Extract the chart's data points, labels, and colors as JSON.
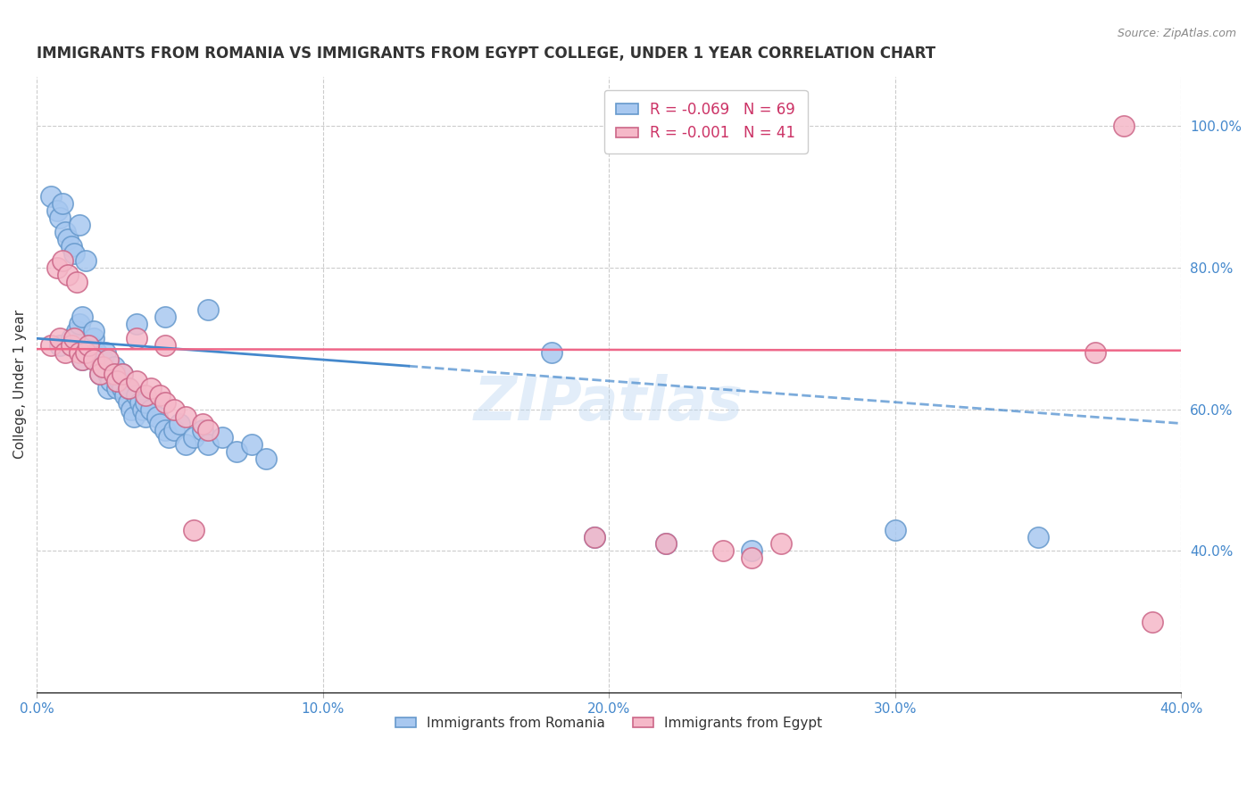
{
  "title": "IMMIGRANTS FROM ROMANIA VS IMMIGRANTS FROM EGYPT COLLEGE, UNDER 1 YEAR CORRELATION CHART",
  "source": "Source: ZipAtlas.com",
  "ylabel": "College, Under 1 year",
  "x_min": 0.0,
  "x_max": 0.4,
  "y_min": 0.2,
  "y_max": 1.07,
  "romania_R": -0.069,
  "romania_N": 69,
  "egypt_R": -0.001,
  "egypt_N": 41,
  "legend_label_romania": "R = -0.069   N = 69",
  "legend_label_egypt": "R = -0.001   N = 41",
  "bottom_legend_romania": "Immigrants from Romania",
  "bottom_legend_egypt": "Immigrants from Egypt",
  "romania_color": "#a8c8f0",
  "romania_edge": "#6699cc",
  "egypt_color": "#f5b8c8",
  "egypt_edge": "#cc6688",
  "trendline_romania_color": "#4488cc",
  "trendline_egypt_color": "#ee6688",
  "grid_color": "#cccccc",
  "title_color": "#333333",
  "axis_label_color": "#4488cc",
  "watermark": "ZIPatlas",
  "romania_x": [
    0.008,
    0.012,
    0.014,
    0.015,
    0.016,
    0.016,
    0.018,
    0.019,
    0.02,
    0.02,
    0.021,
    0.021,
    0.022,
    0.023,
    0.023,
    0.024,
    0.025,
    0.025,
    0.026,
    0.027,
    0.027,
    0.028,
    0.029,
    0.03,
    0.03,
    0.031,
    0.032,
    0.032,
    0.033,
    0.034,
    0.035,
    0.036,
    0.037,
    0.038,
    0.038,
    0.04,
    0.042,
    0.043,
    0.045,
    0.046,
    0.048,
    0.05,
    0.052,
    0.055,
    0.058,
    0.06,
    0.065,
    0.07,
    0.075,
    0.08,
    0.005,
    0.007,
    0.008,
    0.009,
    0.01,
    0.011,
    0.012,
    0.013,
    0.015,
    0.017,
    0.18,
    0.195,
    0.22,
    0.25,
    0.3,
    0.35,
    0.035,
    0.045,
    0.06
  ],
  "romania_y": [
    0.69,
    0.7,
    0.71,
    0.72,
    0.73,
    0.67,
    0.68,
    0.69,
    0.7,
    0.71,
    0.67,
    0.68,
    0.65,
    0.66,
    0.67,
    0.68,
    0.65,
    0.63,
    0.64,
    0.65,
    0.66,
    0.63,
    0.64,
    0.65,
    0.63,
    0.62,
    0.61,
    0.63,
    0.6,
    0.59,
    0.62,
    0.61,
    0.6,
    0.59,
    0.61,
    0.6,
    0.59,
    0.58,
    0.57,
    0.56,
    0.57,
    0.58,
    0.55,
    0.56,
    0.57,
    0.55,
    0.56,
    0.54,
    0.55,
    0.53,
    0.9,
    0.88,
    0.87,
    0.89,
    0.85,
    0.84,
    0.83,
    0.82,
    0.86,
    0.81,
    0.68,
    0.42,
    0.41,
    0.4,
    0.43,
    0.42,
    0.72,
    0.73,
    0.74
  ],
  "egypt_x": [
    0.005,
    0.008,
    0.01,
    0.012,
    0.013,
    0.015,
    0.016,
    0.017,
    0.018,
    0.02,
    0.022,
    0.023,
    0.025,
    0.027,
    0.028,
    0.03,
    0.032,
    0.035,
    0.038,
    0.04,
    0.043,
    0.045,
    0.048,
    0.052,
    0.058,
    0.06,
    0.007,
    0.009,
    0.011,
    0.014,
    0.195,
    0.22,
    0.24,
    0.25,
    0.26,
    0.37,
    0.38,
    0.39,
    0.035,
    0.045,
    0.055
  ],
  "egypt_y": [
    0.69,
    0.7,
    0.68,
    0.69,
    0.7,
    0.68,
    0.67,
    0.68,
    0.69,
    0.67,
    0.65,
    0.66,
    0.67,
    0.65,
    0.64,
    0.65,
    0.63,
    0.64,
    0.62,
    0.63,
    0.62,
    0.61,
    0.6,
    0.59,
    0.58,
    0.57,
    0.8,
    0.81,
    0.79,
    0.78,
    0.42,
    0.41,
    0.4,
    0.39,
    0.41,
    0.68,
    1.0,
    0.3,
    0.7,
    0.69,
    0.43
  ]
}
